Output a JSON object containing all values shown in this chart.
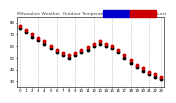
{
  "title": "Milwaukee Weather  Outdoor Temperature vs Heat Index  (24 Hours)",
  "title_fontsize": 3.2,
  "background_color": "#ffffff",
  "plot_bg_color": "#ffffff",
  "grid_color": "#aaaaaa",
  "hours": [
    0,
    1,
    2,
    3,
    4,
    5,
    6,
    7,
    8,
    9,
    10,
    11,
    12,
    13,
    14,
    15,
    16,
    17,
    18,
    19,
    20,
    21,
    22,
    23
  ],
  "temp": [
    75,
    72,
    68,
    65,
    62,
    58,
    55,
    52,
    50,
    52,
    55,
    57,
    60,
    62,
    60,
    58,
    55,
    50,
    46,
    42,
    39,
    36,
    34,
    32
  ],
  "heat_index": [
    77,
    74,
    70,
    67,
    64,
    60,
    57,
    54,
    52,
    54,
    57,
    59,
    62,
    64,
    62,
    60,
    57,
    52,
    48,
    44,
    41,
    38,
    36,
    34
  ],
  "temp_color": "#000000",
  "heat_color": "#cc0000",
  "legend_temp_color": "#0000cc",
  "legend_heat_color": "#cc0000",
  "ylim_min": 25,
  "ylim_max": 85,
  "yticks": [
    30,
    40,
    50,
    60,
    70,
    80
  ],
  "marker_size": 1.8,
  "tick_fontsize": 2.8,
  "grid_hours": [
    0,
    3,
    6,
    9,
    12,
    15,
    18,
    21,
    23
  ]
}
